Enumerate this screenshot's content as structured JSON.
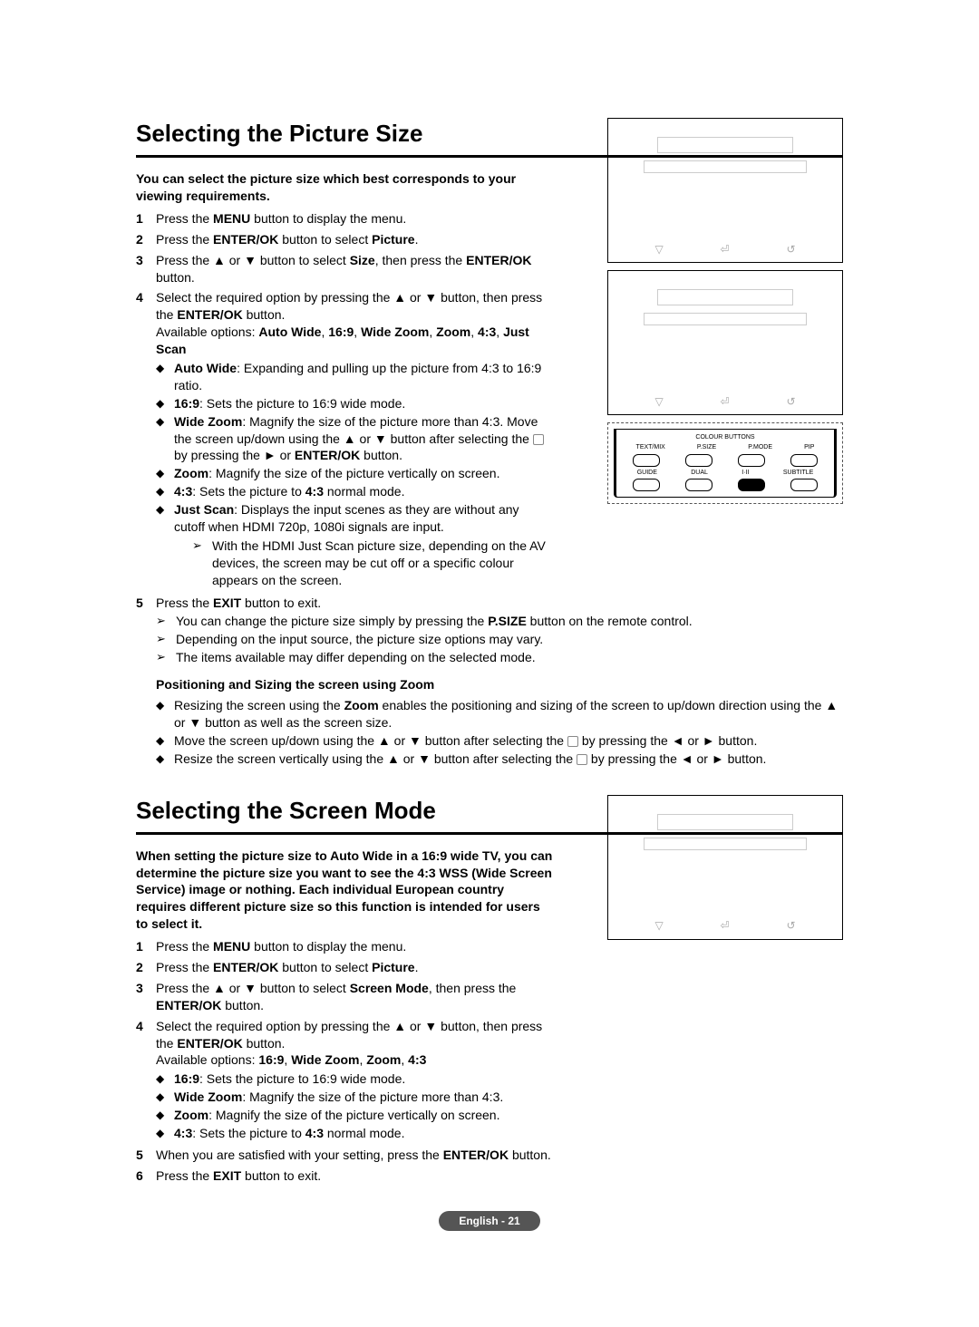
{
  "section1": {
    "title": "Selecting the Picture Size",
    "intro": "You can select the picture size which best corresponds to your viewing requirements.",
    "steps": [
      {
        "n": "1",
        "html": "Press the <b>MENU</b> button to display the menu."
      },
      {
        "n": "2",
        "html": "Press the <b>ENTER/OK</b> button to select <b>Picture</b>."
      },
      {
        "n": "3",
        "html": "Press the ▲ or ▼ button to select <b>Size</b>, then press the <b>ENTER/OK</b> button."
      },
      {
        "n": "4",
        "html": "Select the required option by pressing the ▲ or ▼ button, then press the <b>ENTER/OK</b> button.<br>Available options: <b>Auto Wide</b>, <b>16:9</b>, <b>Wide Zoom</b>, <b>Zoom</b>, <b>4:3</b>, <b>Just Scan</b>"
      }
    ],
    "options": [
      "<b>Auto Wide</b>: Expanding and pulling up the picture from 4:3 to 16:9 ratio.",
      "<b>16:9</b>: Sets the picture to 16:9 wide mode.",
      "<b>Wide Zoom</b>: Magnify the size of the picture more than 4:3. Move the screen up/down using the ▲ or ▼ button after selecting the <span class='dicon'></span> by pressing the ► or <b>ENTER/OK</b> button.",
      "<b>Zoom</b>: Magnify the size of the picture vertically on screen.",
      "<b>4:3</b>: Sets the picture to <b>4:3</b> normal mode.",
      "<b>Just Scan</b>: Displays the input scenes as they are without any cutoff when HDMI 720p, 1080i signals are input."
    ],
    "justscan_note": "With the HDMI Just Scan picture size, depending on the AV devices, the screen may be cut off or a specific colour appears on the screen.",
    "step5": "Press the <b>EXIT</b> button to exit.",
    "step5_notes": [
      "You can change the picture size simply by pressing the <b>P.SIZE</b> button on the remote control.",
      "Depending on the input source, the picture size options may vary.",
      "The items available may differ depending on the selected mode."
    ],
    "zoom_head": "Positioning and Sizing the screen using Zoom",
    "zoom_items": [
      "Resizing the screen using the <b>Zoom</b> enables the positioning and sizing of the screen to up/down direction using the ▲ or ▼ button as well as the screen size.",
      "Move the screen up/down using the ▲ or ▼ button after selecting the <span class='dicon'></span> by pressing the ◄ or ► button.",
      "Resize the screen vertically using the ▲ or ▼ button after selecting the <span class='dicon'></span> by pressing the ◄ or ► button."
    ]
  },
  "section2": {
    "title": "Selecting the Screen Mode",
    "intro": "When setting the picture size to Auto Wide in a 16:9 wide TV, you can determine the picture size you want to see the 4:3 WSS (Wide Screen Service) image or nothing. Each individual European country requires different picture size so this function is intended for users to select it.",
    "steps": [
      {
        "n": "1",
        "html": "Press the <b>MENU</b> button to display the menu."
      },
      {
        "n": "2",
        "html": "Press the <b>ENTER/OK</b> button to select <b>Picture</b>."
      },
      {
        "n": "3",
        "html": "Press the ▲ or ▼ button to select <b>Screen Mode</b>, then press the <b>ENTER/OK</b> button."
      },
      {
        "n": "4",
        "html": "Select the required option by pressing the ▲ or ▼ button, then press the <b>ENTER/OK</b> button.<br>Available options: <b>16:9</b>, <b>Wide Zoom</b>, <b>Zoom</b>, <b>4:3</b>"
      }
    ],
    "options": [
      "<b>16:9</b>: Sets the picture to 16:9 wide mode.",
      "<b>Wide Zoom</b>: Magnify the size of the picture more than 4:3.",
      "<b>Zoom</b>: Magnify the size of the picture vertically on screen.",
      "<b>4:3</b>: Sets the picture to <b>4:3</b> normal mode."
    ],
    "step5": "When you are satisfied with your setting, press the <b>ENTER/OK</b> button.",
    "step6": "Press the <b>EXIT</b> button to exit."
  },
  "remote": {
    "top": "COLOUR BUTTONS",
    "row1": [
      "TEXT/MIX",
      "P.SIZE",
      "P.MODE",
      "PIP"
    ],
    "row2": [
      "GUIDE",
      "DUAL",
      "I·II",
      "SUBTITLE"
    ]
  },
  "footer": "English - 21"
}
